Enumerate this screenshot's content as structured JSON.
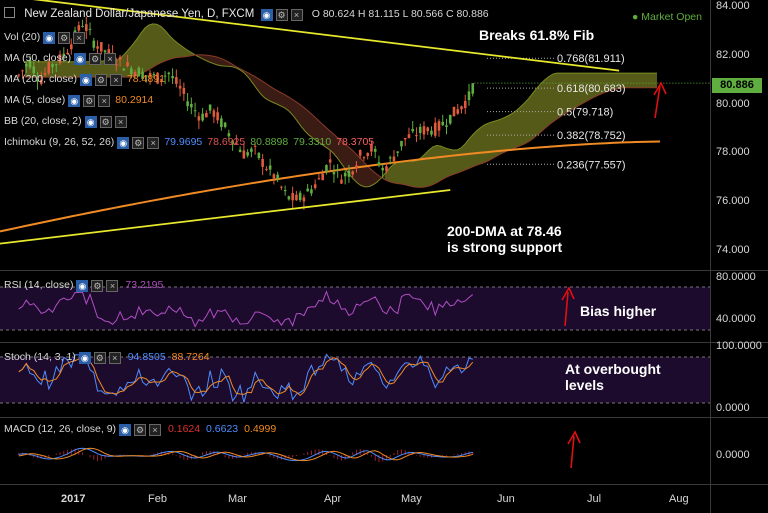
{
  "header": {
    "title": "New Zealand Dollar/Japanese Yen, D, FXCM",
    "ohlc": "O 80.624  H 81.115  L 80.566  C 80.886",
    "market_status": "Market Open"
  },
  "studies": [
    {
      "label": "Vol (20)",
      "values": []
    },
    {
      "label": "MA (50, close)",
      "values": []
    },
    {
      "label": "MA (200, close)",
      "values": [
        {
          "text": "78.4891",
          "color": "#f08a24"
        }
      ]
    },
    {
      "label": "MA (5, close)",
      "values": [
        {
          "text": "80.2914",
          "color": "#f08a24"
        }
      ]
    },
    {
      "label": "BB (20, close, 2)",
      "values": []
    },
    {
      "label": "Ichimoku (9, 26, 52, 26)",
      "values": [
        {
          "text": "79.9695",
          "color": "#4f8cff"
        },
        {
          "text": "78.6925",
          "color": "#e05050"
        },
        {
          "text": "80.8898",
          "color": "#5fae3f"
        },
        {
          "text": "79.3310",
          "color": "#5fae3f"
        },
        {
          "text": "78.3705",
          "color": "#ff6060"
        }
      ]
    }
  ],
  "price_axis": {
    "ticks": [
      "84.000",
      "82.000",
      "80.000",
      "78.000",
      "76.000",
      "74.000"
    ],
    "current": "80.886"
  },
  "time_axis": [
    "2017",
    "Feb",
    "Mar",
    "Apr",
    "May",
    "Jun",
    "Jul",
    "Aug"
  ],
  "fib_levels": [
    {
      "label": "0.768(81.911)",
      "value": 81.911
    },
    {
      "label": "0.618(80.683)",
      "value": 80.683
    },
    {
      "label": "0.5(79.718)",
      "value": 79.718
    },
    {
      "label": "0.382(78.752)",
      "value": 78.752
    },
    {
      "label": "0.236(77.557)",
      "value": 77.557
    }
  ],
  "annotations": {
    "fib": "Breaks 61.8% Fib",
    "support": "200-DMA at 78.46\nis strong support",
    "rsi": "Bias higher",
    "stoch": "At overbought\nlevels"
  },
  "rsi_panel": {
    "label": "RSI (14, close)",
    "value": "73.2195",
    "ticks": [
      "80.0000",
      "40.0000"
    ]
  },
  "stoch_panel": {
    "label": "Stoch (14, 3, 1)",
    "k": "94.8505",
    "d": "88.7264",
    "ticks": [
      "100.0000",
      "0.0000"
    ]
  },
  "macd_panel": {
    "label": "MACD (12, 26, close, 9)",
    "values": [
      "0.1624",
      "0.6623",
      "0.4999"
    ],
    "ticks": [
      "0.0000"
    ]
  },
  "colors": {
    "background": "#000000",
    "candle_up": "#5fae3f",
    "candle_down": "#e05a3c",
    "ma200": "#f08a24",
    "trendline": "#e8e82c",
    "cloud_bull": "#555a18",
    "cloud_bear": "#3a1c14",
    "current_price": "#5fae3f",
    "arrow": "#e01010",
    "indicator_bg": "#1c0b2c"
  },
  "chart_data": {
    "type": "candlestick",
    "symbol": "New Zealand Dollar/Japanese Yen",
    "timeframe": "D",
    "ylim": [
      73.3,
      84.3
    ],
    "close_path": [
      [
        "2017-01-02",
        81.2
      ],
      [
        "2017-01-06",
        81.8
      ],
      [
        "2017-01-10",
        81.0
      ],
      [
        "2017-01-14",
        81.6
      ],
      [
        "2017-01-18",
        81.9
      ],
      [
        "2017-01-22",
        82.6
      ],
      [
        "2017-01-26",
        83.4
      ],
      [
        "2017-01-30",
        82.6
      ],
      [
        "2017-02-03",
        82.2
      ],
      [
        "2017-02-07",
        81.9
      ],
      [
        "2017-02-11",
        81.6
      ],
      [
        "2017-02-15",
        81.4
      ],
      [
        "2017-02-19",
        81.2
      ],
      [
        "2017-02-23",
        81.1
      ],
      [
        "2017-02-27",
        81.3
      ],
      [
        "2017-03-03",
        80.7
      ],
      [
        "2017-03-07",
        80.0
      ],
      [
        "2017-03-11",
        79.5
      ],
      [
        "2017-03-15",
        79.8
      ],
      [
        "2017-03-19",
        79.2
      ],
      [
        "2017-03-23",
        78.6
      ],
      [
        "2017-03-27",
        78.0
      ],
      [
        "2017-03-31",
        78.1
      ],
      [
        "2017-04-04",
        77.5
      ],
      [
        "2017-04-08",
        77.0
      ],
      [
        "2017-04-12",
        76.2
      ],
      [
        "2017-04-16",
        76.1
      ],
      [
        "2017-04-20",
        76.4
      ],
      [
        "2017-04-24",
        76.9
      ],
      [
        "2017-04-28",
        77.7
      ],
      [
        "2017-05-02",
        77.0
      ],
      [
        "2017-05-06",
        77.3
      ],
      [
        "2017-05-10",
        78.0
      ],
      [
        "2017-05-14",
        78.2
      ],
      [
        "2017-05-18",
        77.3
      ],
      [
        "2017-05-22",
        77.9
      ],
      [
        "2017-05-26",
        78.6
      ],
      [
        "2017-05-30",
        78.8
      ],
      [
        "2017-06-03",
        79.0
      ],
      [
        "2017-06-07",
        79.0
      ],
      [
        "2017-06-11",
        79.4
      ],
      [
        "2017-06-15",
        79.8
      ],
      [
        "2017-06-19",
        80.3
      ],
      [
        "2017-06-21",
        80.9
      ]
    ],
    "current": 80.886,
    "ma200": {
      "name": "MA (200, close)",
      "start": 74.8,
      "end": 78.49
    },
    "trendlines": [
      {
        "from": [
          "2016-12-26",
          84.5
        ],
        "to": [
          "2017-08-14",
          81.4
        ]
      },
      {
        "from": [
          "2016-12-26",
          74.3
        ],
        "to": [
          "2017-06-12",
          76.5
        ]
      }
    ]
  }
}
